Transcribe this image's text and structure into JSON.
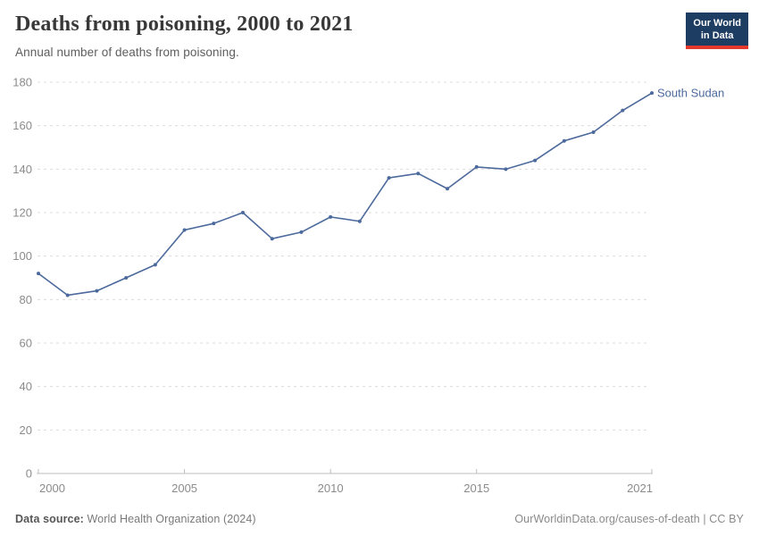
{
  "header": {
    "title": "Deaths from poisoning, 2000 to 2021",
    "subtitle": "Annual number of deaths from poisoning."
  },
  "logo": {
    "line1": "Our World",
    "line2": "in Data"
  },
  "chart_data": {
    "type": "line",
    "title": "Deaths from poisoning, 2000 to 2021",
    "xlabel": "",
    "ylabel": "",
    "xlim": [
      2000,
      2021
    ],
    "ylim": [
      0,
      180
    ],
    "x_ticks": [
      2000,
      2005,
      2010,
      2015,
      2021
    ],
    "y_ticks": [
      0,
      20,
      40,
      60,
      80,
      100,
      120,
      140,
      160,
      180
    ],
    "grid": "horizontal-dashed",
    "legend_position": "end-of-line-label",
    "x": [
      2000,
      2001,
      2002,
      2003,
      2004,
      2005,
      2006,
      2007,
      2008,
      2009,
      2010,
      2011,
      2012,
      2013,
      2014,
      2015,
      2016,
      2017,
      2018,
      2019,
      2020,
      2021
    ],
    "series": [
      {
        "name": "South Sudan",
        "color": "#4c6a9c",
        "values": [
          92,
          82,
          84,
          90,
          96,
          112,
          115,
          120,
          108,
          111,
          118,
          116,
          136,
          138,
          131,
          141,
          140,
          144,
          153,
          157,
          167,
          175
        ]
      }
    ]
  },
  "footer": {
    "source_label": "Data source:",
    "source_value": "World Health Organization (2024)",
    "credit": "OurWorldinData.org/causes-of-death | CC BY"
  },
  "colors": {
    "line": "#4c6a9c",
    "logo_bg": "#1d3d63",
    "logo_accent": "#e6392e",
    "grid": "#dcdcdc",
    "axis": "#bdbdbd",
    "tick_label": "#8b8b8b"
  }
}
